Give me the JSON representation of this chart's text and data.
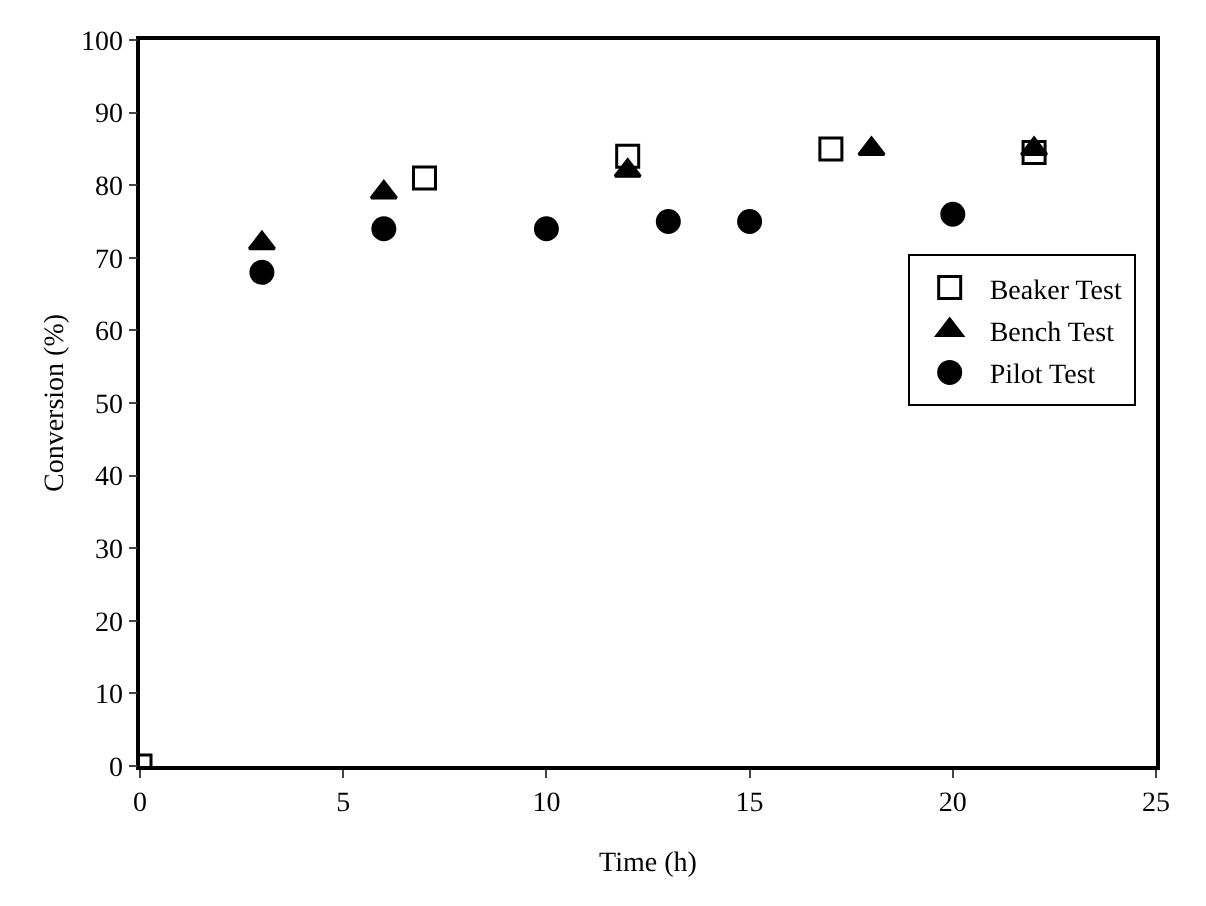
{
  "chart_data": {
    "type": "scatter",
    "xlabel": "Time (h)",
    "ylabel": "Conversion (%)",
    "xlim": [
      0,
      25
    ],
    "xticks": [
      0,
      5,
      10,
      15,
      20,
      25
    ],
    "ylim": [
      0,
      100
    ],
    "yticks": [
      0,
      10,
      20,
      30,
      40,
      50,
      60,
      70,
      80,
      90,
      100
    ],
    "grid": false,
    "legend": "right",
    "series": [
      {
        "name": "Beaker Test",
        "color": "#000000",
        "marker": "square",
        "x": [
          0,
          7,
          12,
          17,
          22
        ],
        "values": [
          0,
          81,
          84,
          85,
          84.5
        ]
      },
      {
        "name": "Bench Test",
        "color": "#000000",
        "marker": "triangle",
        "x": [
          3,
          6,
          12,
          18,
          22
        ],
        "values": [
          72,
          79,
          82,
          85,
          85
        ]
      },
      {
        "name": "Pilot Test",
        "color": "#000000",
        "marker": "circle",
        "x": [
          3,
          6,
          10,
          13,
          15,
          20
        ],
        "values": [
          68,
          74,
          74,
          75,
          75,
          76
        ]
      }
    ]
  }
}
